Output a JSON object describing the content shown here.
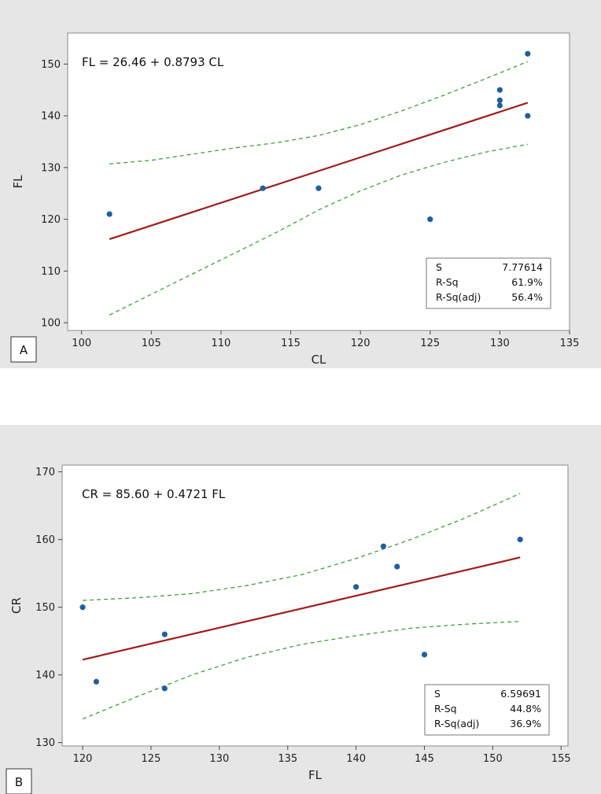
{
  "chart_data": [
    {
      "type": "scatter",
      "panel_label": "A",
      "equation": "FL = 26.46 + 0.8793 CL",
      "xlabel": "CL",
      "ylabel": "FL",
      "xlim": [
        99,
        135
      ],
      "ylim": [
        98.5,
        156
      ],
      "xticks": [
        100,
        105,
        110,
        115,
        120,
        125,
        130,
        135
      ],
      "yticks": [
        100,
        110,
        120,
        130,
        140,
        150
      ],
      "points": [
        {
          "x": 102,
          "y": 121
        },
        {
          "x": 113,
          "y": 126
        },
        {
          "x": 117,
          "y": 126
        },
        {
          "x": 125,
          "y": 120
        },
        {
          "x": 130,
          "y": 145
        },
        {
          "x": 130,
          "y": 143
        },
        {
          "x": 130,
          "y": 142
        },
        {
          "x": 132,
          "y": 152
        },
        {
          "x": 132,
          "y": 140
        }
      ],
      "fit": {
        "intercept": 26.46,
        "slope": 0.8793,
        "x_range": [
          102,
          132
        ]
      },
      "ci_upper": [
        [
          102,
          130.7
        ],
        [
          105,
          131.4
        ],
        [
          108,
          132.6
        ],
        [
          111,
          133.8
        ],
        [
          114,
          134.8
        ],
        [
          117,
          136.2
        ],
        [
          120,
          138.3
        ],
        [
          123,
          141.0
        ],
        [
          126,
          144.0
        ],
        [
          129,
          147.2
        ],
        [
          132,
          150.5
        ]
      ],
      "ci_lower": [
        [
          102,
          101.5
        ],
        [
          105,
          105.5
        ],
        [
          108,
          109.5
        ],
        [
          111,
          113.5
        ],
        [
          114,
          117.5
        ],
        [
          117,
          121.8
        ],
        [
          120,
          125.5
        ],
        [
          123,
          128.6
        ],
        [
          126,
          131.0
        ],
        [
          129,
          133.0
        ],
        [
          132,
          134.5
        ]
      ],
      "stats": [
        {
          "label": "S",
          "value": "7.77614"
        },
        {
          "label": "R-Sq",
          "value": "61.9%"
        },
        {
          "label": "R-Sq(adj)",
          "value": "56.4%"
        }
      ],
      "colors": {
        "points": "#1f5fa0",
        "fit": "#a01c1c",
        "ci": "#2e9a2e"
      }
    },
    {
      "type": "scatter",
      "panel_label": "B",
      "equation": "CR = 85.60 + 0.4721 FL",
      "xlabel": "FL",
      "ylabel": "CR",
      "xlim": [
        118.5,
        155.5
      ],
      "ylim": [
        129.5,
        171
      ],
      "xticks": [
        120,
        125,
        130,
        135,
        140,
        145,
        150,
        155
      ],
      "yticks": [
        130,
        140,
        150,
        160,
        170
      ],
      "points": [
        {
          "x": 120,
          "y": 150
        },
        {
          "x": 121,
          "y": 139
        },
        {
          "x": 126,
          "y": 146
        },
        {
          "x": 126,
          "y": 138
        },
        {
          "x": 140,
          "y": 153
        },
        {
          "x": 142,
          "y": 159
        },
        {
          "x": 143,
          "y": 156
        },
        {
          "x": 145,
          "y": 143
        },
        {
          "x": 152,
          "y": 160
        }
      ],
      "fit": {
        "intercept": 85.6,
        "slope": 0.4721,
        "x_range": [
          120,
          152
        ]
      },
      "ci_upper": [
        [
          120,
          151.0
        ],
        [
          124,
          151.4
        ],
        [
          128,
          152.0
        ],
        [
          132,
          153.2
        ],
        [
          136,
          154.8
        ],
        [
          140,
          157.2
        ],
        [
          144,
          160.0
        ],
        [
          148,
          163.2
        ],
        [
          152,
          166.8
        ]
      ],
      "ci_lower": [
        [
          120,
          133.5
        ],
        [
          124,
          136.8
        ],
        [
          128,
          140.0
        ],
        [
          132,
          142.6
        ],
        [
          136,
          144.5
        ],
        [
          140,
          145.8
        ],
        [
          144,
          146.9
        ],
        [
          148,
          147.5
        ],
        [
          152,
          147.9
        ]
      ],
      "stats": [
        {
          "label": "S",
          "value": "6.59691"
        },
        {
          "label": "R-Sq",
          "value": "44.8%"
        },
        {
          "label": "R-Sq(adj)",
          "value": "36.9%"
        }
      ],
      "colors": {
        "points": "#1f5fa0",
        "fit": "#a01c1c",
        "ci": "#2e9a2e"
      }
    }
  ]
}
